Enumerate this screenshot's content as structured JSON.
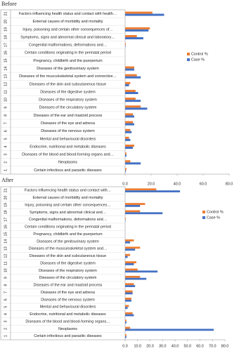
{
  "chart_data": [
    {
      "type": "bar",
      "orientation": "horizontal",
      "title": "Before",
      "row_numbers": [
        1,
        2,
        3,
        4,
        5,
        6,
        7,
        8,
        9,
        10,
        11,
        12,
        13,
        14,
        15,
        16,
        17,
        18,
        19,
        20,
        21
      ],
      "categories": [
        "Certain infectious and parasitic diseases",
        "Neoplasms",
        "Diseases of the blood and blood-forming organs and…",
        "Endocrine, nutritional and metabolic diseases",
        "Mental and behavioural disorders",
        "Diseases of the nervous system",
        "Diseases of the eye and adnexa",
        "Diseases of the ear and mastoid process",
        "Diseases of the circulatory system",
        "Diseases of the respiratory system",
        "Diseases of the digestive system",
        "Diseases of the skin and subcutaneous tissue",
        "Diseases of the musculoskeletal system and connective…",
        "Diseases of the genitourinary system",
        "Pregnancy, childbirth and the puerperium",
        "Certain conditions originating in the perinatal period",
        "Congenital malformations, deformations and…",
        "Symptoms, signs and abnormal clinical and laboratory…",
        "Injury, poisoning and certain other consequences of…",
        "External causes of morbidity and mortality",
        "Factors influencing health status and contact with health…"
      ],
      "series": [
        {
          "name": "Control %",
          "color": "#ed7d31",
          "values": [
            1,
            4,
            1,
            7,
            3,
            4,
            6,
            6,
            12,
            8,
            8,
            4,
            9,
            7,
            0,
            0,
            0.5,
            9,
            19,
            0,
            21
          ]
        },
        {
          "name": "Case %",
          "color": "#4472c4",
          "values": [
            0.5,
            12,
            1,
            6,
            4,
            5,
            7,
            7,
            17,
            12,
            10,
            3,
            12,
            7,
            0,
            0,
            0.3,
            14,
            18,
            0,
            30
          ]
        }
      ],
      "xlim": [
        0,
        80
      ],
      "xticks": [
        {
          "value": 0,
          "label": "0.0"
        },
        {
          "value": 20,
          "label": "20.0"
        },
        {
          "value": 40,
          "label": "40.0"
        },
        {
          "value": 60,
          "label": "60.0"
        },
        {
          "value": 80,
          "label": "80.0"
        }
      ],
      "legend": "upper right"
    },
    {
      "type": "bar",
      "orientation": "horizontal",
      "title": "After",
      "row_numbers": [
        1,
        2,
        3,
        4,
        5,
        6,
        7,
        8,
        9,
        10,
        11,
        12,
        13,
        14,
        15,
        16,
        17,
        18,
        19,
        20,
        21
      ],
      "categories": [
        "Certain infectious and parasitic diseases",
        "Neoplasms",
        "Diseases of the blood and blood-forming organs…",
        "Endocrine, nutritional and metabolic diseases",
        "Mental and behavioural disorders",
        "Diseases of the nervous system",
        "Diseases of the eye and adnexa",
        "Diseases of the ear and mastoid process",
        "Diseases of the circulatory system",
        "Diseases of the respiratory system",
        "Diseases of the digestive system",
        "Diseases of the skin and subcutaneous tissue",
        "Diseases of the musculoskeletal system and…",
        "Diseases of the genitourinary system",
        "Pregnancy, childbirth and the puerperium",
        "Certain conditions originating in the perinatal period",
        "Congenital malformations, deformations and…",
        "Symptoms, signs and abnormal clinical and…",
        "Injury, poisoning and certain other consequences…",
        "External causes of morbidity and mortality",
        "Factors influencing health status and contact with…"
      ],
      "series": [
        {
          "name": "Control %",
          "color": "#ed7d31",
          "values": [
            1,
            4,
            1,
            6,
            3,
            5,
            6,
            7,
            12,
            10,
            9,
            4,
            12,
            7,
            0,
            0,
            0.5,
            12,
            16,
            0,
            25
          ]
        },
        {
          "name": "Case %",
          "color": "#4472c4",
          "values": [
            1,
            71,
            1,
            7,
            2,
            5,
            6,
            8,
            17,
            26,
            7,
            2,
            8,
            4,
            0,
            0,
            0.3,
            30,
            12,
            0,
            44
          ]
        }
      ],
      "xlim": [
        0,
        80
      ],
      "xticks": [
        {
          "value": 0,
          "label": "0.0"
        },
        {
          "value": 10,
          "label": "10.0"
        },
        {
          "value": 20,
          "label": "20.0"
        },
        {
          "value": 30,
          "label": "30.0"
        },
        {
          "value": 40,
          "label": "40.0"
        },
        {
          "value": 50,
          "label": "50.0"
        },
        {
          "value": 60,
          "label": "60.0"
        },
        {
          "value": 70,
          "label": "70.0"
        },
        {
          "value": 80,
          "label": "80.0"
        }
      ],
      "legend": "upper right"
    }
  ]
}
